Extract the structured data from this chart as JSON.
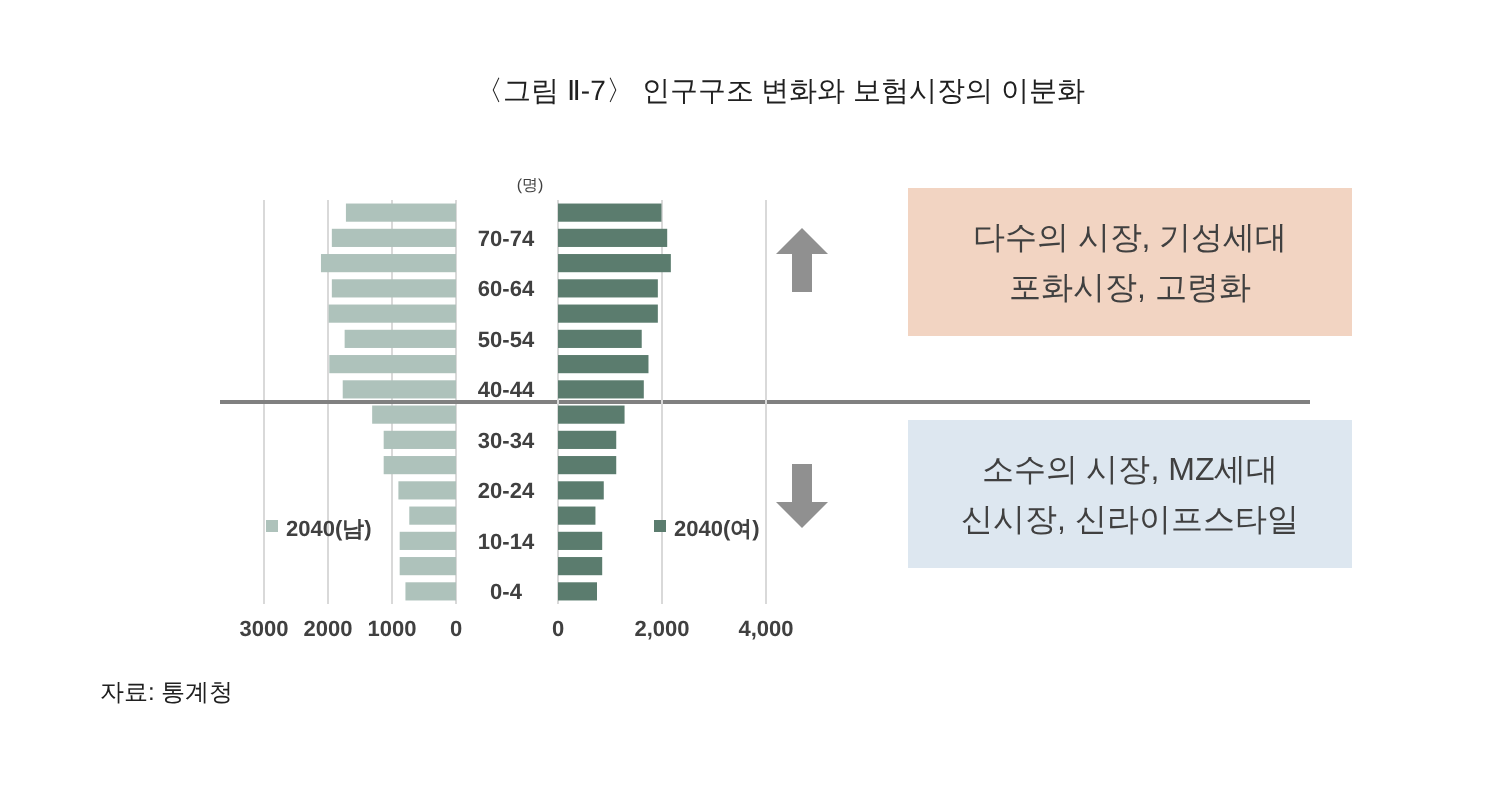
{
  "chart_data": [
    {
      "type": "bar",
      "orientation": "horizontal",
      "title": "〈그림 Ⅱ-7〉 인구구조 변화와 보험시장의 이분화",
      "annotations": [
        "자료: 통계청"
      ],
      "categories": [
        null,
        "70-74",
        null,
        "60-64",
        null,
        "50-54",
        null,
        "40-44",
        null,
        "30-34",
        null,
        "20-24",
        null,
        "10-14",
        null,
        "0-4"
      ],
      "series": [
        {
          "name": "2040(남)",
          "color": "#aec2bb",
          "values": [
            1720,
            1940,
            2110,
            1940,
            1990,
            1740,
            1980,
            1770,
            1310,
            1130,
            1130,
            900,
            730,
            880,
            880,
            790
          ]
        }
      ],
      "xlim": [
        3000,
        0
      ],
      "xticks": [
        3000,
        2000,
        1000,
        0
      ],
      "grid": "x",
      "legend": "bottom left",
      "tick_labels": "x",
      "ref_lines": [
        {
          "axis": "y",
          "value": "40-44",
          "color": "#808080",
          "line_style": "solid"
        }
      ]
    },
    {
      "type": "bar",
      "orientation": "horizontal",
      "annotations": [
        "(명)"
      ],
      "categories": [
        null,
        "70-74",
        null,
        "60-64",
        null,
        "50-54",
        null,
        "40-44",
        null,
        "30-34",
        null,
        "20-24",
        null,
        "10-14",
        null,
        "0-4"
      ],
      "series": [
        {
          "name": "2040(여)",
          "color": "#5b7c6e",
          "values": [
            1990,
            2100,
            2170,
            1920,
            1920,
            1610,
            1740,
            1650,
            1280,
            1120,
            1120,
            880,
            720,
            850,
            850,
            750
          ]
        }
      ],
      "xlim": [
        0,
        4000
      ],
      "xticks": [
        0,
        {
          "value": 2000,
          "label": "2,000"
        },
        {
          "value": 4000,
          "label": "4,000"
        }
      ],
      "grid": "x",
      "legend": "bottom right"
    },
    {
      "type": "other",
      "annotations": [
        "다수의 시장, 기성세대",
        "포화시장, 고령화",
        "소수의 시장, MZ세대",
        "신시장, 신라이프스타일"
      ],
      "colors": [
        "#f2d4c2",
        "#dde7f0"
      ]
    }
  ]
}
